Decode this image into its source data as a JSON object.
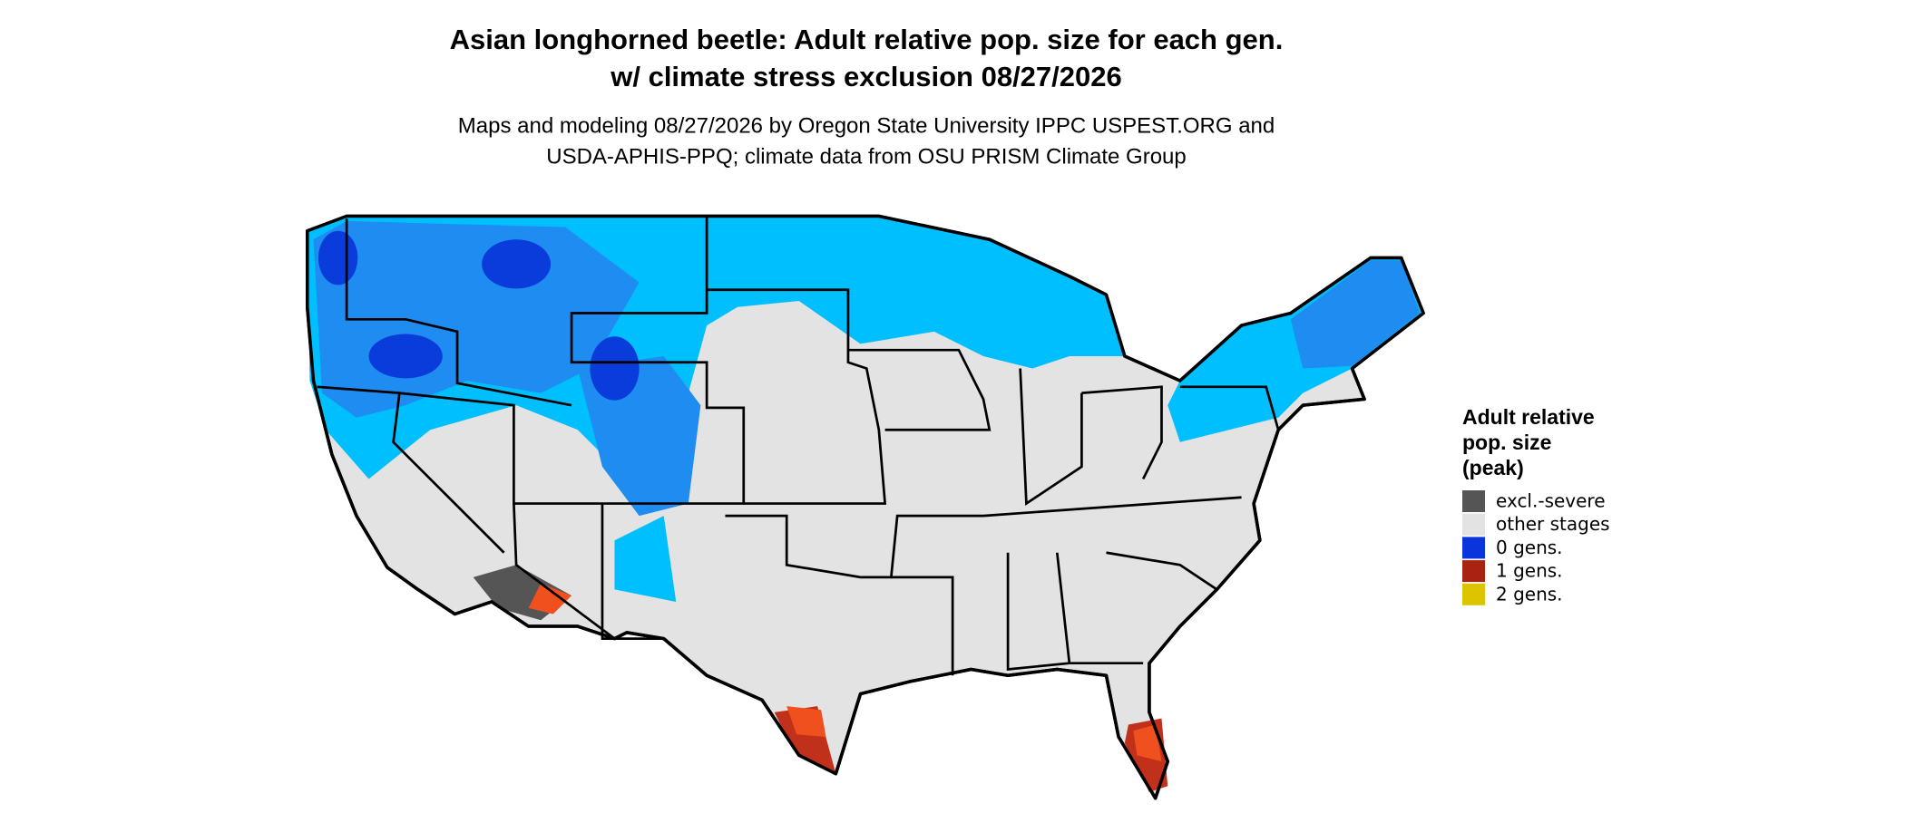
{
  "map": {
    "title": [
      "Asian longhorned beetle: Adult relative pop. size for each gen.",
      "w/ climate stress exclusion 08/27/2026"
    ],
    "subtitle": [
      "Maps and modeling 08/27/2026 by Oregon State University IPPC USPEST.ORG and",
      "USDA-APHIS-PPQ; climate data from OSU PRISM Climate Group"
    ],
    "legend": {
      "title": [
        "Adult relative",
        "pop. size",
        "(peak)"
      ],
      "items": [
        {
          "label": "excl.-severe",
          "color": "#555555"
        },
        {
          "label": "other stages",
          "color": "#e3e3e3"
        },
        {
          "label": "0 gens.",
          "color": "#0a34dc"
        },
        {
          "label": "1 gens.",
          "color": "#a82410"
        },
        {
          "label": "2 gens.",
          "color": "#dcc400"
        }
      ]
    }
  }
}
